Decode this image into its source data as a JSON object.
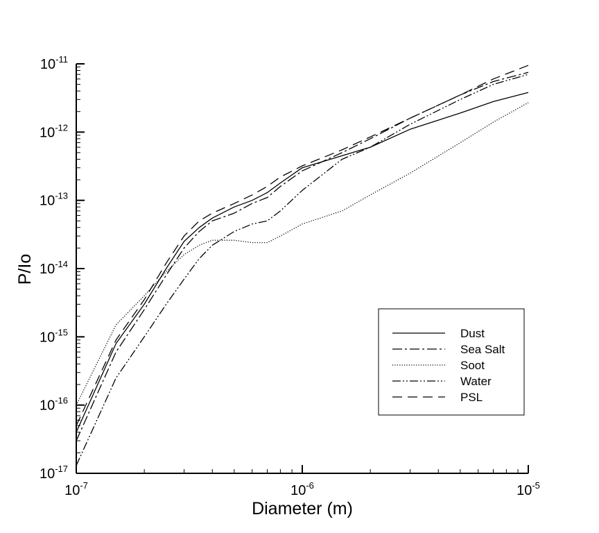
{
  "chart_data": {
    "type": "line",
    "xlabel": "Diameter (m)",
    "ylabel": "P/Io",
    "x_scale": "log",
    "y_scale": "log",
    "xlim": [
      1e-07,
      1e-05
    ],
    "ylim": [
      1e-17,
      1e-11
    ],
    "x_ticks": [
      {
        "base": "10",
        "exp": "-7",
        "value": 1e-07
      },
      {
        "base": "10",
        "exp": "-6",
        "value": 1e-06
      },
      {
        "base": "10",
        "exp": "-5",
        "value": 1e-05
      }
    ],
    "y_ticks": [
      {
        "base": "10",
        "exp": "-17",
        "value": 1e-17
      },
      {
        "base": "10",
        "exp": "-16",
        "value": 1e-16
      },
      {
        "base": "10",
        "exp": "-15",
        "value": 1e-15
      },
      {
        "base": "10",
        "exp": "-14",
        "value": 1e-14
      },
      {
        "base": "10",
        "exp": "-13",
        "value": 1e-13
      },
      {
        "base": "10",
        "exp": "-12",
        "value": 1e-12
      },
      {
        "base": "10",
        "exp": "-11",
        "value": 1e-11
      }
    ],
    "grid": false,
    "legend_position": "bottom-right",
    "series": [
      {
        "name": "Dust",
        "line_style": "solid",
        "x": [
          1e-07,
          1.5e-07,
          2e-07,
          2.5e-07,
          3e-07,
          3.5e-07,
          4e-07,
          5e-07,
          6e-07,
          7e-07,
          8e-07,
          1e-06,
          1.5e-06,
          2e-06,
          3e-06,
          5e-06,
          7e-06,
          1e-05
        ],
        "y": [
          4e-17,
          8e-16,
          3e-15,
          1e-14,
          2.5e-14,
          4e-14,
          5.5e-14,
          8e-14,
          1e-13,
          1.3e-13,
          1.8e-13,
          3e-13,
          4.5e-13,
          6e-13,
          1.1e-12,
          1.9e-12,
          2.8e-12,
          3.8e-12
        ]
      },
      {
        "name": "Sea Salt",
        "line_style": "dashdot",
        "x": [
          1e-07,
          1.5e-07,
          2e-07,
          2.5e-07,
          3e-07,
          3.5e-07,
          4e-07,
          5e-07,
          6e-07,
          7e-07,
          8e-07,
          1e-06,
          1.5e-06,
          2e-06,
          3e-06,
          5e-06,
          7e-06,
          1e-05
        ],
        "y": [
          3e-17,
          6e-16,
          2.5e-15,
          8e-15,
          2e-14,
          3.5e-14,
          5e-14,
          6.5e-14,
          9e-14,
          1.1e-13,
          1.6e-13,
          2.7e-13,
          5e-13,
          8e-13,
          1.6e-12,
          3.5e-12,
          5.5e-12,
          7.5e-12
        ]
      },
      {
        "name": "Soot",
        "line_style": "dotted",
        "x": [
          1e-07,
          1.5e-07,
          2e-07,
          2.5e-07,
          3e-07,
          3.5e-07,
          4e-07,
          5e-07,
          6e-07,
          7e-07,
          8e-07,
          1e-06,
          1.5e-06,
          2e-06,
          3e-06,
          5e-06,
          7e-06,
          1e-05
        ],
        "y": [
          1e-16,
          1.5e-15,
          4e-15,
          9e-15,
          1.6e-14,
          2.2e-14,
          2.6e-14,
          2.6e-14,
          2.4e-14,
          2.4e-14,
          3e-14,
          4.5e-14,
          7e-14,
          1.2e-13,
          2.5e-13,
          7e-13,
          1.4e-12,
          2.7e-12
        ]
      },
      {
        "name": "Water",
        "line_style": "dashdotdot",
        "x": [
          1e-07,
          1.5e-07,
          2e-07,
          2.5e-07,
          3e-07,
          3.5e-07,
          4e-07,
          5e-07,
          6e-07,
          7e-07,
          8e-07,
          1e-06,
          1.5e-06,
          2e-06,
          3e-06,
          5e-06,
          7e-06,
          1e-05
        ],
        "y": [
          1.3e-17,
          2.5e-16,
          1e-15,
          3e-15,
          7e-15,
          1.4e-14,
          2.2e-14,
          3.5e-14,
          4.5e-14,
          5e-14,
          7e-14,
          1.4e-13,
          4e-13,
          6e-13,
          1.3e-12,
          3e-12,
          5e-12,
          7e-12
        ]
      },
      {
        "name": "PSL",
        "line_style": "dashed",
        "x": [
          1e-07,
          1.5e-07,
          2e-07,
          2.5e-07,
          3e-07,
          3.5e-07,
          4e-07,
          5e-07,
          6e-07,
          7e-07,
          8e-07,
          1e-06,
          1.5e-06,
          2e-06,
          3e-06,
          5e-06,
          7e-06,
          1e-05
        ],
        "y": [
          5e-17,
          9e-16,
          3.5e-15,
          1.2e-14,
          3e-14,
          5e-14,
          6.5e-14,
          9e-14,
          1.2e-13,
          1.6e-13,
          2.2e-13,
          3.2e-13,
          5.5e-13,
          8.5e-13,
          1.6e-12,
          3.5e-12,
          6e-12,
          9.5e-12
        ]
      }
    ]
  }
}
